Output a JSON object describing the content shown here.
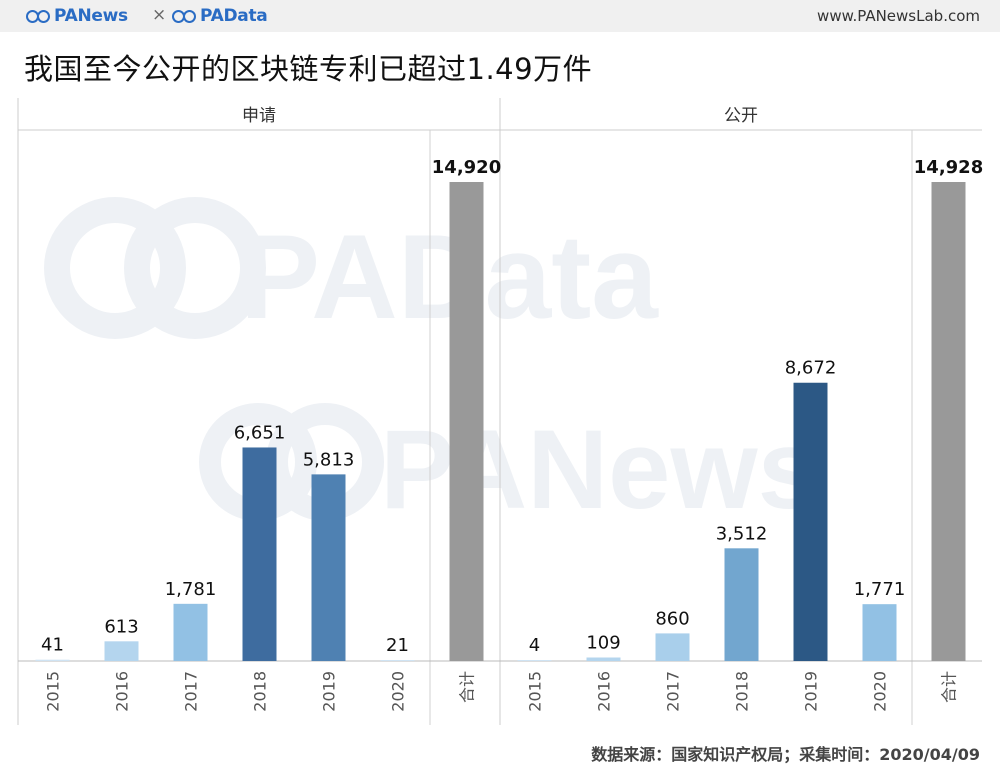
{
  "header": {
    "logo_left": "PANews",
    "separator": "×",
    "logo_right": "PAData",
    "url": "www.PANewsLab.com"
  },
  "title": "我国至今公开的区块链专利已超过1.49万件",
  "watermark": {
    "line1": "PAData",
    "line2": "PANews"
  },
  "chart_data": [
    {
      "type": "bar",
      "panel_title": "申请",
      "categories": [
        "2015",
        "2016",
        "2017",
        "2018",
        "2019",
        "2020",
        "合计"
      ],
      "values": [
        41,
        613,
        1781,
        6651,
        5813,
        21,
        14920
      ],
      "labels": [
        "41",
        "613",
        "1,781",
        "6,651",
        "5,813",
        "21",
        "14,920"
      ],
      "colors": [
        "#cfe3f3",
        "#b4d5ee",
        "#92c1e4",
        "#3e6c9f",
        "#4f81b2",
        "#cfe3f3",
        "#999999"
      ],
      "ylim": [
        0,
        14920
      ],
      "grid": false
    },
    {
      "type": "bar",
      "panel_title": "公开",
      "categories": [
        "2015",
        "2016",
        "2017",
        "2018",
        "2019",
        "2020",
        "合计"
      ],
      "values": [
        4,
        109,
        860,
        3512,
        8672,
        1771,
        14928
      ],
      "labels": [
        "4",
        "109",
        "860",
        "3,512",
        "8,672",
        "1,771",
        "14,928"
      ],
      "colors": [
        "#cfe3f3",
        "#b4d5ee",
        "#a9cfeb",
        "#72a6cf",
        "#2c5885",
        "#92c1e4",
        "#999999"
      ],
      "ylim": [
        0,
        14928
      ],
      "grid": false
    }
  ],
  "source": "数据来源：国家知识产权局；采集时间：2020/04/09"
}
